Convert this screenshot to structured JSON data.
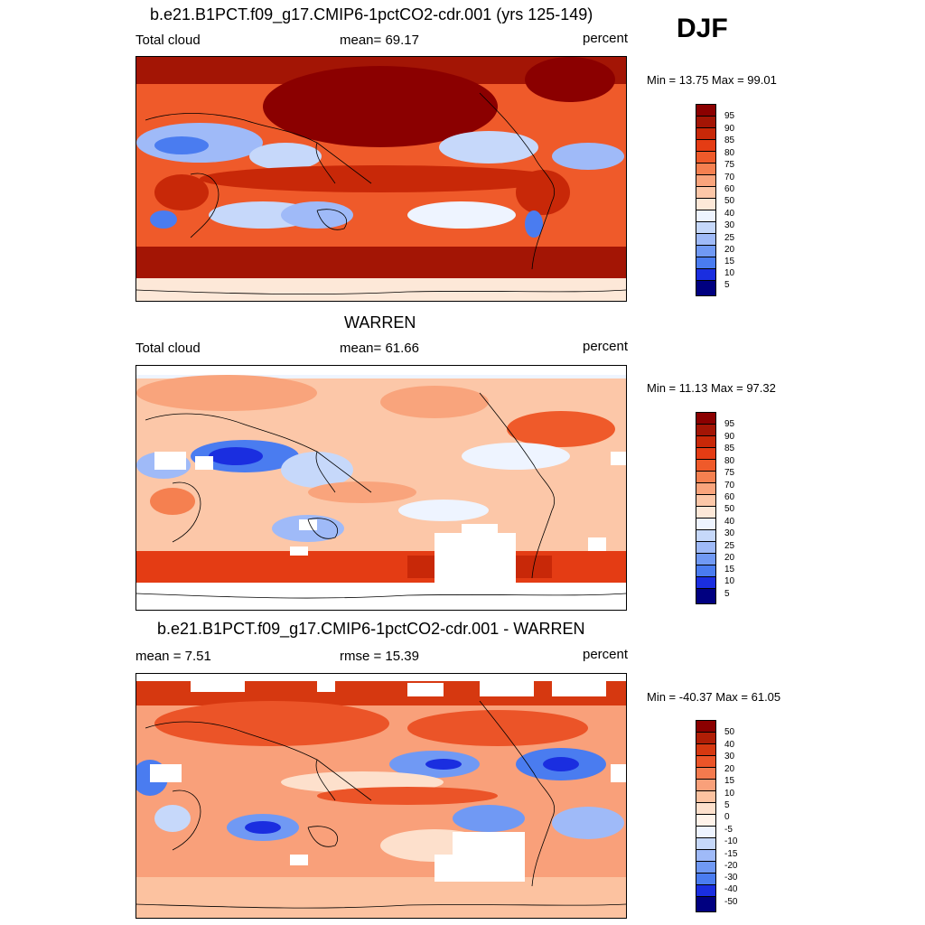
{
  "season": "DJF",
  "palette_abs": [
    "#000080",
    "#0000c8",
    "#1a2ee0",
    "#2f5ce8",
    "#4a7cf0",
    "#7099f4",
    "#9fbaf8",
    "#c6d8fa",
    "#eef4ff",
    "#fde8d8",
    "#fcc7a8",
    "#f9a47c",
    "#f58050",
    "#ef5a2a",
    "#e43c14",
    "#c82808",
    "#a31505",
    "#8b0000"
  ],
  "palette_diff": [
    "#000080",
    "#0000c8",
    "#1a2ee0",
    "#2f5ce8",
    "#4a7cf0",
    "#7099f4",
    "#9fbaf8",
    "#c6d8fa",
    "#eef4ff",
    "#fff3ea",
    "#fde0cc",
    "#fcc2a0",
    "#f9a07a",
    "#f47a4e",
    "#eb5428",
    "#d63810",
    "#b01e06",
    "#8b0000"
  ],
  "panels": [
    {
      "title": "b.e21.B1PCT.f09_g17.CMIP6-1pctCO2-cdr.001 (yrs 125-149)",
      "left_label": "Total cloud",
      "center_label": "mean=  69.17",
      "units": "percent",
      "minmax": "Min =  13.75 Max =  99.01",
      "levels": [
        "95",
        "90",
        "85",
        "80",
        "75",
        "70",
        "60",
        "50",
        "40",
        "30",
        "25",
        "20",
        "15",
        "10",
        "5"
      ]
    },
    {
      "title": "WARREN",
      "left_label": "Total cloud",
      "center_label": "mean=  61.66",
      "units": "percent",
      "minmax": "Min =  11.13 Max =  97.32",
      "levels": [
        "95",
        "90",
        "85",
        "80",
        "75",
        "70",
        "60",
        "50",
        "40",
        "30",
        "25",
        "20",
        "15",
        "10",
        "5"
      ]
    },
    {
      "title": "b.e21.B1PCT.f09_g17.CMIP6-1pctCO2-cdr.001 - WARREN",
      "left_label": "mean =   7.51",
      "center_label": "rmse =  15.39",
      "units": "percent",
      "minmax": "Min = -40.37 Max =  61.05",
      "levels": [
        "50",
        "40",
        "30",
        "20",
        "15",
        "10",
        "5",
        "0",
        "-5",
        "-10",
        "-15",
        "-20",
        "-30",
        "-40",
        "-50"
      ]
    }
  ]
}
